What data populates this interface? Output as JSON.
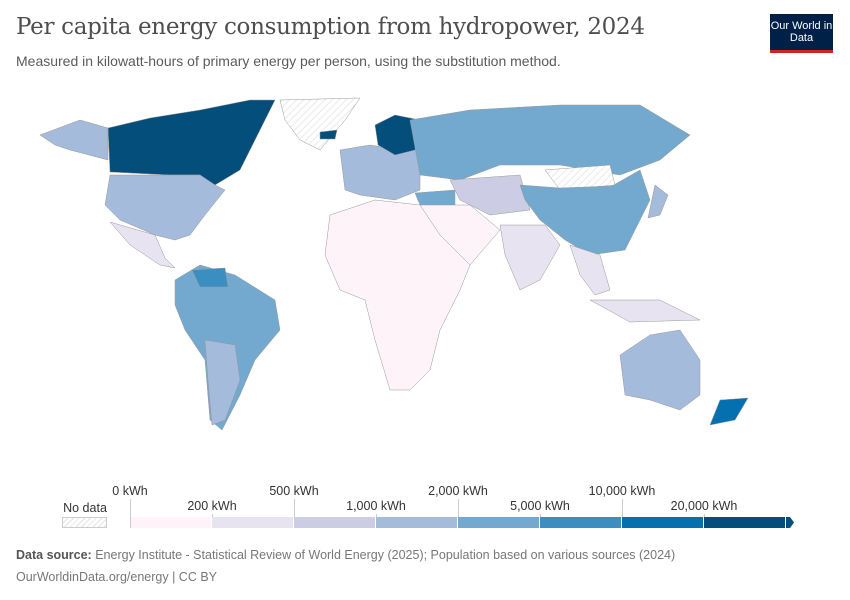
{
  "header": {
    "title": "Per capita energy consumption from hydropower, 2024",
    "subtitle": "Measured in kilowatt-hours of primary energy per person, using the substitution method.",
    "logo_text": "Our World in Data"
  },
  "legend": {
    "no_data_label": "No data",
    "bins": [
      {
        "label": "0 kWh",
        "color": "#fdf3f8"
      },
      {
        "label": "200 kWh",
        "color": "#e8e3f0"
      },
      {
        "label": "500 kWh",
        "color": "#cccde4"
      },
      {
        "label": "1,000 kWh",
        "color": "#a5bbdb"
      },
      {
        "label": "2,000 kWh",
        "color": "#74a9cf"
      },
      {
        "label": "5,000 kWh",
        "color": "#3b8fc0"
      },
      {
        "label": "10,000 kWh",
        "color": "#0570b0"
      },
      {
        "label": "20,000 kWh",
        "color": "#034e7b"
      }
    ]
  },
  "chart_data": {
    "type": "choropleth",
    "title": "Per capita energy consumption from hydropower, 2024",
    "unit": "kWh",
    "bin_edges": [
      0,
      200,
      500,
      1000,
      2000,
      5000,
      10000,
      20000
    ],
    "regions": [
      {
        "name": "Canada",
        "bin": 7
      },
      {
        "name": "Greenland",
        "bin": null
      },
      {
        "name": "United States",
        "bin": 3
      },
      {
        "name": "Alaska",
        "bin": 3
      },
      {
        "name": "Mexico",
        "bin": 1
      },
      {
        "name": "South America",
        "bin": 4
      },
      {
        "name": "Argentina",
        "bin": 3
      },
      {
        "name": "Venezuela",
        "bin": 5
      },
      {
        "name": "Africa",
        "bin": 0
      },
      {
        "name": "Europe",
        "bin": 3
      },
      {
        "name": "Norway and Sweden",
        "bin": 7
      },
      {
        "name": "Iceland",
        "bin": 7
      },
      {
        "name": "Russia",
        "bin": 4
      },
      {
        "name": "Turkey",
        "bin": 4
      },
      {
        "name": "Central Asia",
        "bin": 2
      },
      {
        "name": "Middle East",
        "bin": 0
      },
      {
        "name": "Mongolia",
        "bin": null
      },
      {
        "name": "China",
        "bin": 4
      },
      {
        "name": "India",
        "bin": 1
      },
      {
        "name": "Southeast Asia",
        "bin": 1
      },
      {
        "name": "Japan",
        "bin": 3
      },
      {
        "name": "Indonesia",
        "bin": 1
      },
      {
        "name": "Australia",
        "bin": 3
      },
      {
        "name": "New Zealand",
        "bin": 6
      }
    ]
  },
  "footer": {
    "source_label": "Data source:",
    "source_text": "Energy Institute - Statistical Review of World Energy (2025); Population based on various sources (2024)",
    "url_license": "OurWorldinData.org/energy | CC BY"
  }
}
